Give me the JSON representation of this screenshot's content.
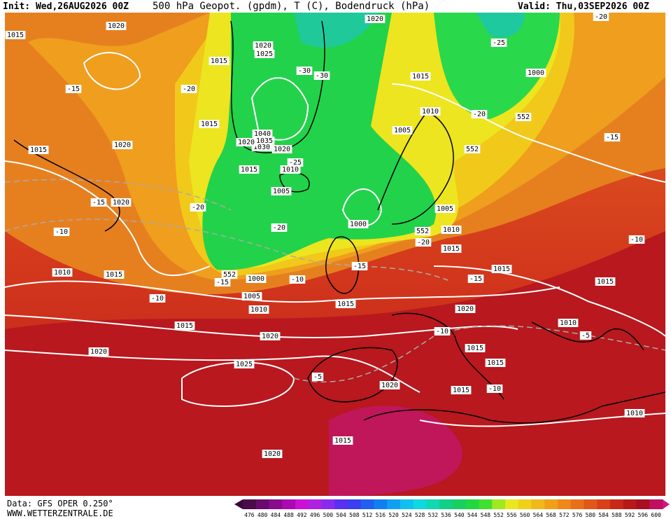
{
  "header": {
    "init": "Init: Wed,26AUG2026 00Z",
    "title": "500 hPa Geopot. (gpdm), T (C), Bodendruck (hPa)",
    "valid": "Valid: Thu,03SEP2026 00Z"
  },
  "footer": {
    "source": "Data: GFS OPER 0.250°",
    "website": "WWW.WETTERZENTRALE.DE"
  },
  "colorbar": {
    "labels": [
      476,
      480,
      484,
      488,
      492,
      496,
      500,
      504,
      508,
      512,
      516,
      520,
      524,
      528,
      532,
      536,
      540,
      544,
      548,
      552,
      556,
      560,
      564,
      568,
      572,
      576,
      580,
      584,
      588,
      592,
      596,
      600
    ]
  },
  "map": {
    "contour_labels": [
      "1015",
      "1020",
      "1020",
      "1025",
      "1015",
      "1020",
      "1015",
      "1000",
      "552",
      "1010",
      "1005",
      "552",
      "-25",
      "-20",
      "-15",
      "-20",
      "-30",
      "-30",
      "1015",
      "1040",
      "1035",
      "1030",
      "1020",
      "1020",
      "1015",
      "1020",
      "1015",
      "1010",
      "-25",
      "1005",
      "-15",
      "1020",
      "-20",
      "-10",
      "-20",
      "1000",
      "1005",
      "552",
      "1010",
      "-20",
      "1015",
      "-15",
      "1010",
      "1015",
      "552",
      "-15",
      "1000",
      "-10",
      "1015",
      "-15",
      "1015",
      "-10",
      "-10",
      "1005",
      "1010",
      "1015",
      "1020",
      "1015",
      "1020",
      "-10",
      "1010",
      "-5",
      "1015",
      "1020",
      "1015",
      "1025",
      "-5",
      "1020",
      "1015",
      "-10",
      "1010",
      "1015",
      "1020",
      "-15",
      "-20"
    ]
  }
}
